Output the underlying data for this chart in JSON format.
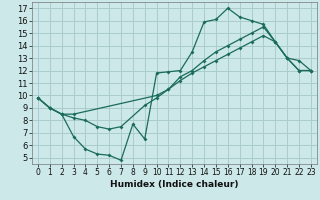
{
  "xlabel": "Humidex (Indice chaleur)",
  "bg_color": "#cce8e8",
  "grid_color": "#aacccc",
  "line_color": "#1a6b5a",
  "xlim": [
    -0.5,
    23.5
  ],
  "ylim": [
    4.5,
    17.5
  ],
  "xticks": [
    0,
    1,
    2,
    3,
    4,
    5,
    6,
    7,
    8,
    9,
    10,
    11,
    12,
    13,
    14,
    15,
    16,
    17,
    18,
    19,
    20,
    21,
    22,
    23
  ],
  "yticks": [
    5,
    6,
    7,
    8,
    9,
    10,
    11,
    12,
    13,
    14,
    15,
    16,
    17
  ],
  "line1_x": [
    0,
    1,
    2,
    3,
    4,
    5,
    6,
    7,
    8,
    9,
    10,
    11,
    12,
    13,
    14,
    15,
    16,
    17,
    18,
    19,
    20,
    21,
    22,
    23
  ],
  "line1_y": [
    9.8,
    9.0,
    8.5,
    6.7,
    5.7,
    5.3,
    5.2,
    4.8,
    7.7,
    6.5,
    11.8,
    11.9,
    12.0,
    13.5,
    15.9,
    16.1,
    17.0,
    16.3,
    16.0,
    15.7,
    14.3,
    13.0,
    12.8,
    12.0
  ],
  "line2_x": [
    0,
    1,
    2,
    3,
    4,
    5,
    6,
    7,
    9,
    10,
    11,
    12,
    13,
    14,
    15,
    16,
    17,
    18,
    19,
    20,
    21,
    22,
    23
  ],
  "line2_y": [
    9.8,
    9.0,
    8.5,
    8.2,
    8.0,
    7.5,
    7.3,
    7.5,
    9.2,
    9.8,
    10.5,
    11.5,
    12.0,
    12.8,
    13.5,
    14.0,
    14.5,
    15.0,
    15.5,
    14.3,
    13.0,
    12.0,
    12.0
  ],
  "line3_x": [
    0,
    1,
    2,
    3,
    10,
    11,
    12,
    13,
    14,
    15,
    16,
    17,
    18,
    19,
    20,
    21,
    22,
    23
  ],
  "line3_y": [
    9.8,
    9.0,
    8.5,
    8.5,
    10.0,
    10.5,
    11.2,
    11.8,
    12.3,
    12.8,
    13.3,
    13.8,
    14.3,
    14.8,
    14.3,
    13.0,
    12.0,
    12.0
  ]
}
